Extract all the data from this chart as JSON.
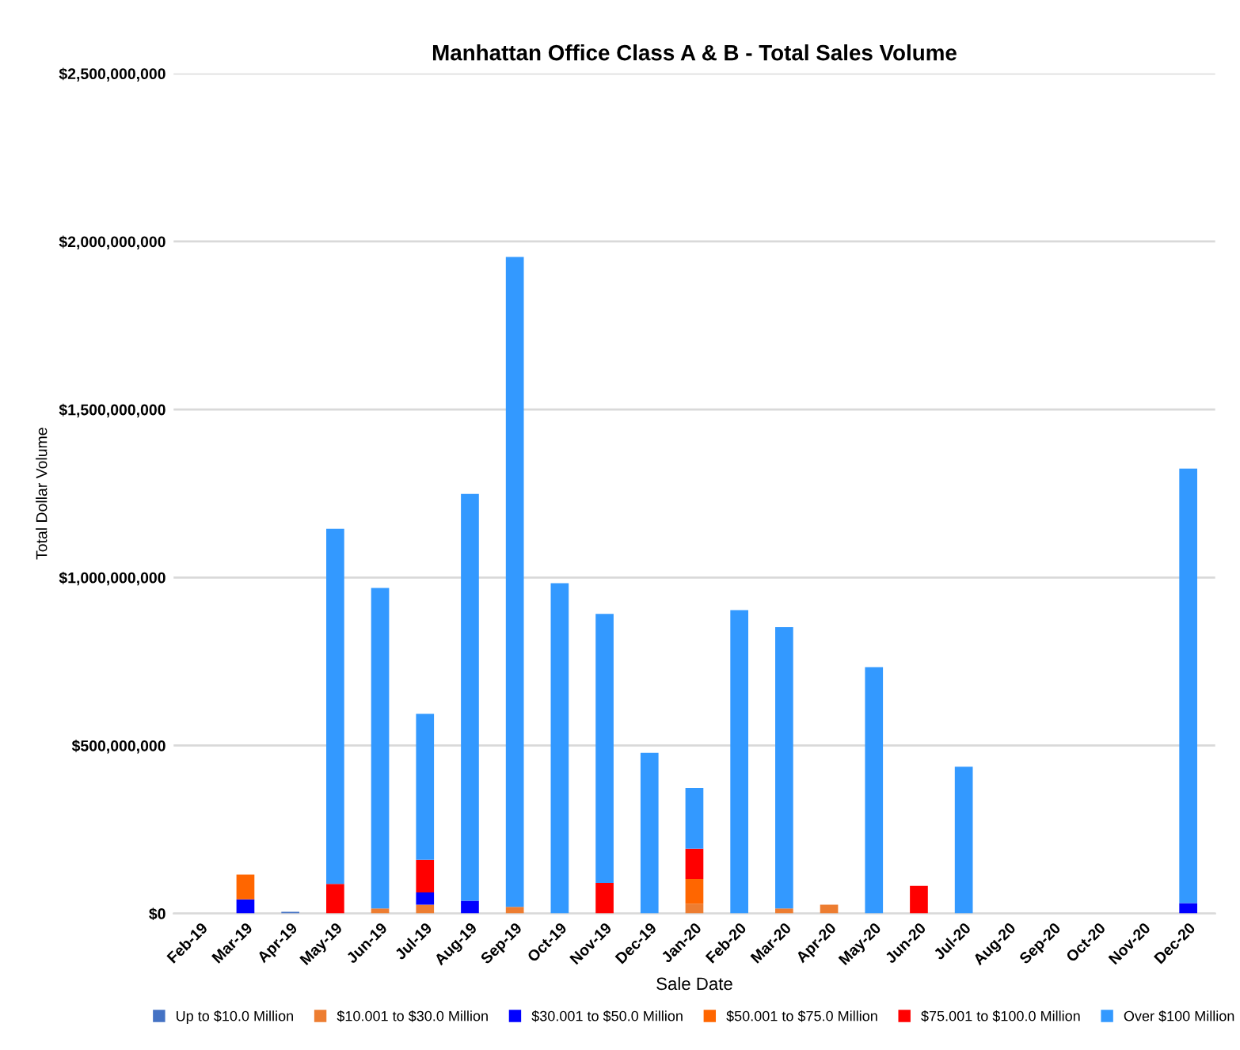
{
  "chart_data": {
    "type": "bar",
    "stacked": true,
    "title": "Manhattan Office Class A & B - Total Sales Volume",
    "xlabel": "Sale Date",
    "ylabel": "Total Dollar Volume",
    "categories": [
      "Feb-19",
      "Mar-19",
      "Apr-19",
      "May-19",
      "Jun-19",
      "Jul-19",
      "Aug-19",
      "Sep-19",
      "Oct-19",
      "Nov-19",
      "Dec-19",
      "Jan-20",
      "Feb-20",
      "Mar-20",
      "Apr-20",
      "May-20",
      "Jun-20",
      "Jul-20",
      "Aug-20",
      "Sep-20",
      "Oct-20",
      "Nov-20",
      "Dec-20"
    ],
    "series": [
      {
        "name": "Up to $10.0 Million",
        "color": "#4472c4",
        "values": [
          null,
          null,
          5000000,
          null,
          null,
          null,
          null,
          null,
          null,
          null,
          null,
          null,
          null,
          null,
          null,
          null,
          null,
          null,
          null,
          null,
          null,
          null,
          null
        ]
      },
      {
        "name": "$10.001 to $30.0 Million",
        "color": "#ed7d31",
        "values": [
          null,
          null,
          null,
          null,
          15000000,
          26000000,
          null,
          20000000,
          null,
          null,
          null,
          29000000,
          null,
          15000000,
          26000000,
          null,
          null,
          null,
          null,
          null,
          null,
          null,
          null
        ]
      },
      {
        "name": "$30.001 to $50.0 Million",
        "color": "#0000ff",
        "values": [
          null,
          42000000,
          null,
          null,
          null,
          37000000,
          38000000,
          null,
          null,
          null,
          null,
          null,
          null,
          null,
          null,
          null,
          null,
          null,
          null,
          null,
          null,
          null,
          31000000
        ]
      },
      {
        "name": "$50.001 to $75.0 Million",
        "color": "#ff6600",
        "values": [
          null,
          74000000,
          null,
          null,
          null,
          null,
          null,
          null,
          null,
          null,
          null,
          74000000,
          null,
          null,
          null,
          null,
          null,
          null,
          null,
          null,
          null,
          null,
          null
        ]
      },
      {
        "name": "$75.001 to $100.0 Million",
        "color": "#ff0000",
        "values": [
          null,
          null,
          null,
          88000000,
          null,
          97000000,
          null,
          null,
          null,
          91000000,
          null,
          90000000,
          null,
          null,
          null,
          null,
          82000000,
          null,
          null,
          null,
          null,
          null,
          null
        ]
      },
      {
        "name": "Over $100 Million",
        "color": "#3399ff",
        "values": [
          null,
          null,
          null,
          1057000000,
          954000000,
          434000000,
          1211000000,
          1934000000,
          983000000,
          801000000,
          478000000,
          181000000,
          903000000,
          837000000,
          null,
          733000000,
          null,
          437000000,
          null,
          null,
          null,
          null,
          1293000000
        ]
      }
    ],
    "ylim": [
      0,
      2500000000
    ],
    "yticks": [
      {
        "value": 0,
        "label": "$0"
      },
      {
        "value": 500000000,
        "label": "$500,000,000"
      },
      {
        "value": 1000000000,
        "label": "$1,000,000,000"
      },
      {
        "value": 1500000000,
        "label": "$1,500,000,000"
      },
      {
        "value": 2000000000,
        "label": "$2,000,000,000"
      },
      {
        "value": 2500000000,
        "label": "$2,500,000,000"
      }
    ],
    "grid": "y",
    "legend": "bottom"
  }
}
